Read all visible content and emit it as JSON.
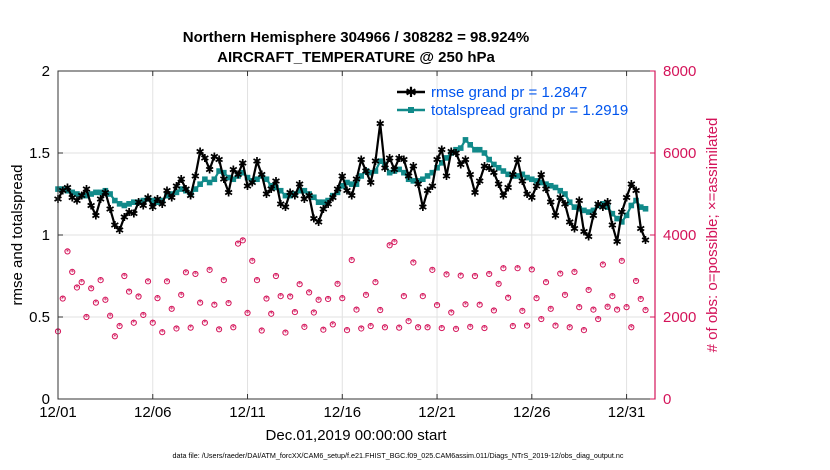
{
  "chart_data": {
    "type": "line",
    "title_line1": "Northern Hemisphere 304966 / 308282 = 98.924%",
    "title_line2": "AIRCRAFT_TEMPERATURE @ 250 hPa",
    "xlabel": "Dec.01,2019 00:00:00 start",
    "ylabel_left": "rmse and totalspread",
    "ylabel_right": "# of obs: o=possible; ×=assimilated",
    "footer": "data file: /Users/raeder/DAI/ATM_forcXX/CAM6_setup/f.e21.FHIST_BGC.f09_025.CAM6assim.011/Diags_NTrS_2019-12/obs_diag_output.nc",
    "xlim": [
      1,
      32.5
    ],
    "ylim_left": [
      0,
      2
    ],
    "ylim_right": [
      0,
      8000
    ],
    "x_ticks": [
      1,
      6,
      11,
      16,
      21,
      26,
      31
    ],
    "x_tick_labels": [
      "12/01",
      "12/06",
      "12/11",
      "12/16",
      "12/21",
      "12/26",
      "12/31"
    ],
    "y_left_ticks": [
      0,
      0.5,
      1,
      1.5,
      2
    ],
    "y_left_tick_labels": [
      "0",
      "0.5",
      "1",
      "1.5",
      "2"
    ],
    "y_right_ticks": [
      0,
      2000,
      4000,
      6000,
      8000
    ],
    "y_right_tick_labels": [
      "0",
      "2000",
      "4000",
      "6000",
      "8000"
    ],
    "colors": {
      "rmse": "#000000",
      "spread": "#118a8a",
      "obs": "#d4145a",
      "legend_text": "#0055ee",
      "right_axis": "#d4145a"
    },
    "series": [
      {
        "name": "rmse grand pr = 1.2847",
        "axis": "left",
        "x_start": 1.0,
        "x_step": 0.25,
        "values": [
          1.22,
          1.27,
          1.29,
          1.23,
          1.21,
          1.24,
          1.28,
          1.18,
          1.12,
          1.22,
          1.26,
          1.16,
          1.06,
          1.03,
          1.11,
          1.14,
          1.13,
          1.2,
          1.18,
          1.23,
          1.17,
          1.22,
          1.19,
          1.27,
          1.23,
          1.3,
          1.34,
          1.28,
          1.24,
          1.36,
          1.51,
          1.47,
          1.4,
          1.48,
          1.46,
          1.34,
          1.26,
          1.4,
          1.37,
          1.44,
          1.3,
          1.32,
          1.45,
          1.37,
          1.25,
          1.28,
          1.33,
          1.19,
          1.17,
          1.26,
          1.24,
          1.31,
          1.22,
          1.24,
          1.1,
          1.08,
          1.16,
          1.19,
          1.23,
          1.28,
          1.36,
          1.27,
          1.24,
          1.34,
          1.46,
          1.39,
          1.32,
          1.45,
          1.68,
          1.41,
          1.47,
          1.4,
          1.47,
          1.46,
          1.36,
          1.42,
          1.31,
          1.17,
          1.27,
          1.3,
          1.46,
          1.52,
          1.36,
          1.51,
          1.5,
          1.43,
          1.46,
          1.37,
          1.26,
          1.33,
          1.42,
          1.41,
          1.38,
          1.31,
          1.24,
          1.29,
          1.37,
          1.46,
          1.33,
          1.25,
          1.23,
          1.3,
          1.37,
          1.28,
          1.2,
          1.12,
          1.23,
          1.19,
          1.08,
          1.04,
          1.21,
          1.02,
          0.99,
          1.12,
          1.19,
          1.17,
          1.2,
          1.06,
          0.96,
          1.14,
          1.23,
          1.31,
          1.27,
          1.04,
          0.97
        ]
      },
      {
        "name": "totalspread grand pr = 1.2919",
        "axis": "left",
        "x_start": 1.0,
        "x_step": 0.25,
        "values": [
          1.28,
          1.28,
          1.27,
          1.26,
          1.25,
          1.24,
          1.24,
          1.25,
          1.26,
          1.26,
          1.27,
          1.25,
          1.21,
          1.19,
          1.18,
          1.19,
          1.2,
          1.2,
          1.21,
          1.22,
          1.21,
          1.2,
          1.21,
          1.24,
          1.25,
          1.26,
          1.28,
          1.27,
          1.25,
          1.28,
          1.31,
          1.34,
          1.32,
          1.34,
          1.39,
          1.38,
          1.35,
          1.34,
          1.36,
          1.38,
          1.35,
          1.33,
          1.34,
          1.36,
          1.34,
          1.3,
          1.29,
          1.27,
          1.24,
          1.24,
          1.25,
          1.27,
          1.27,
          1.25,
          1.23,
          1.2,
          1.2,
          1.21,
          1.24,
          1.26,
          1.3,
          1.32,
          1.31,
          1.31,
          1.36,
          1.39,
          1.38,
          1.39,
          1.45,
          1.43,
          1.38,
          1.39,
          1.4,
          1.38,
          1.34,
          1.33,
          1.33,
          1.34,
          1.36,
          1.38,
          1.41,
          1.44,
          1.47,
          1.5,
          1.52,
          1.53,
          1.58,
          1.55,
          1.52,
          1.52,
          1.5,
          1.46,
          1.43,
          1.41,
          1.39,
          1.37,
          1.36,
          1.36,
          1.37,
          1.35,
          1.34,
          1.33,
          1.32,
          1.31,
          1.3,
          1.29,
          1.27,
          1.25,
          1.2,
          1.17,
          1.16,
          1.15,
          1.14,
          1.15,
          1.18,
          1.19,
          1.17,
          1.13,
          1.1,
          1.08,
          1.12,
          1.18,
          1.21,
          1.17,
          1.16
        ]
      },
      {
        "name": "observations",
        "axis": "right",
        "x_start": 1.0,
        "x_step": 0.25,
        "values": [
          1650,
          2450,
          3600,
          3100,
          2720,
          2850,
          2000,
          2700,
          2350,
          2900,
          2420,
          2030,
          1530,
          1780,
          3000,
          2620,
          1860,
          2500,
          2050,
          2870,
          1860,
          2460,
          1630,
          2870,
          2200,
          1720,
          2540,
          3090,
          1740,
          3050,
          2350,
          1860,
          3150,
          2300,
          1700,
          2900,
          2340,
          1750,
          3790,
          3870,
          2100,
          3370,
          2900,
          1670,
          2450,
          2080,
          3000,
          2510,
          1620,
          2500,
          2120,
          2800,
          1760,
          2600,
          2110,
          2420,
          1690,
          2440,
          1820,
          2810,
          2460,
          1680,
          3390,
          2180,
          1720,
          2540,
          1780,
          2850,
          2170,
          1750,
          3750,
          3830,
          1740,
          2510,
          1900,
          3330,
          1750,
          2510,
          1750,
          3150,
          2290,
          1730,
          3040,
          2110,
          1710,
          3010,
          2310,
          1760,
          3000,
          2300,
          1730,
          3050,
          2160,
          2810,
          3190,
          2470,
          1780,
          3190,
          2150,
          1790,
          3160,
          2460,
          1950,
          2850,
          2200,
          1790,
          3060,
          2540,
          1750,
          3100,
          2240,
          1680,
          2660,
          2180,
          1950,
          3280,
          2250,
          2510,
          2180,
          3370,
          2240,
          1750,
          2880,
          2440,
          2170
        ]
      }
    ]
  }
}
